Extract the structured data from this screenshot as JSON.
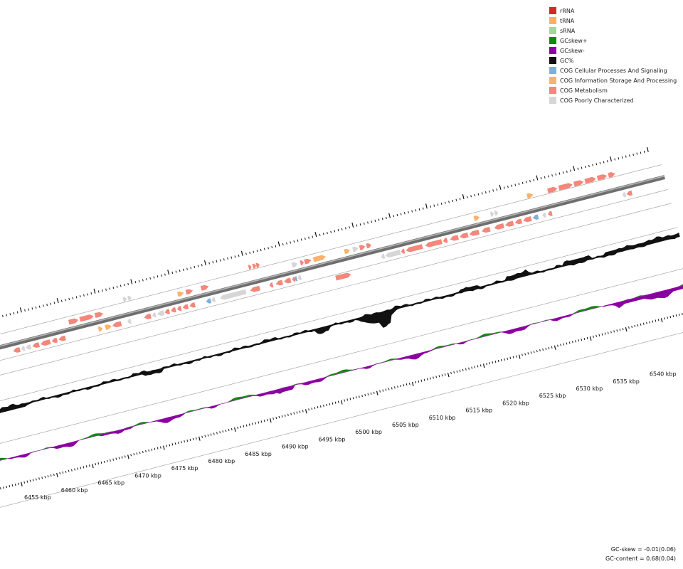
{
  "legend": {
    "items": [
      {
        "label": "rRNA",
        "color": "#d62728"
      },
      {
        "label": "tRNA",
        "color": "#fdae6b"
      },
      {
        "label": "sRNA",
        "color": "#a1d99b"
      },
      {
        "label": "GCskew+",
        "color": "#118811"
      },
      {
        "label": "GCskew-",
        "color": "#8b00a0"
      },
      {
        "label": "GC%",
        "color": "#111111"
      },
      {
        "label": "COG Cellular Processes And Signaling",
        "color": "#7fb0d8"
      },
      {
        "label": "COG Information Storage And Processing",
        "color": "#fdb26b"
      },
      {
        "label": "COG Metabolism",
        "color": "#f4867a"
      },
      {
        "label": "COG Poorly Characterized",
        "color": "#d6d6d6"
      }
    ]
  },
  "axis": {
    "labels": [
      "6455 kbp",
      "6460 kbp",
      "6465 kbp",
      "6470 kbp",
      "6475 kbp",
      "6480 kbp",
      "6485 kbp",
      "6490 kbp",
      "6495 kbp",
      "6500 kbp",
      "6505 kbp",
      "6510 kbp",
      "6515 kbp",
      "6520 kbp",
      "6525 kbp",
      "6530 kbp",
      "6535 kbp",
      "6540 kbp"
    ]
  },
  "stats": {
    "gc_skew": "GC-skew = -0.01(0.06)",
    "gc_content": "GC-content = 0.68(0.04)"
  }
}
